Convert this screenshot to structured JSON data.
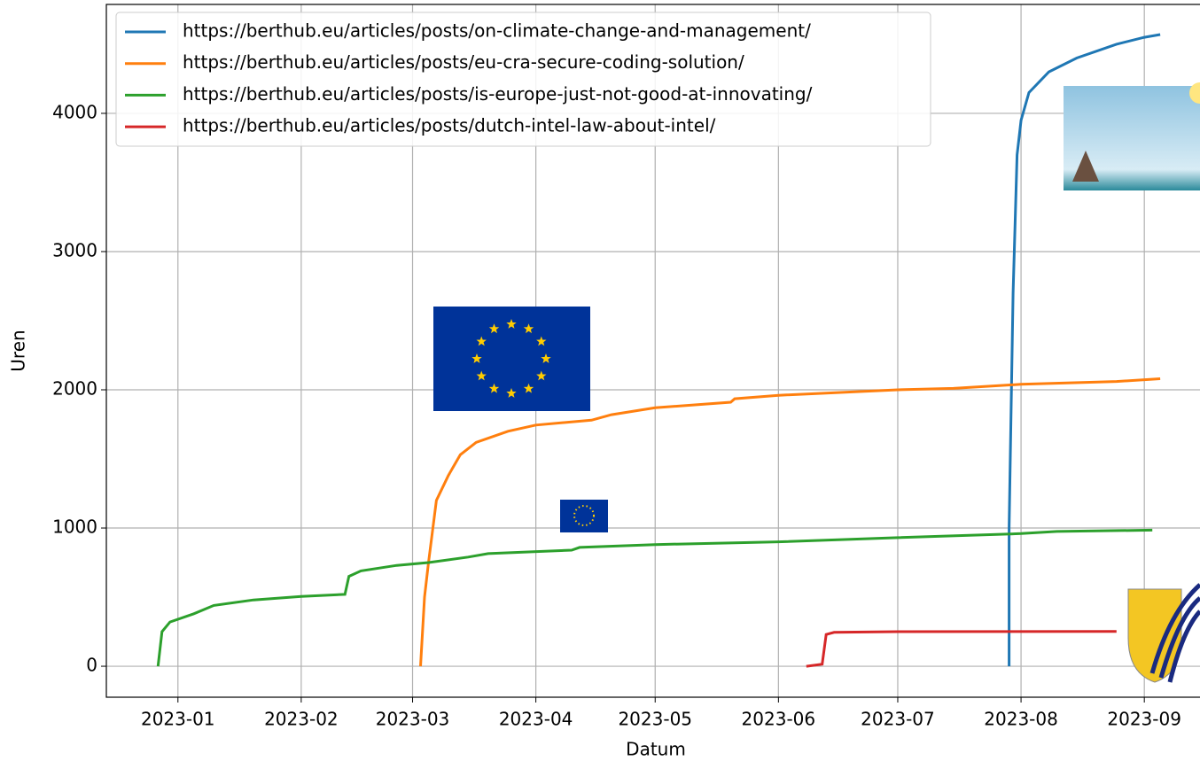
{
  "chart_data": {
    "type": "line",
    "xlabel": "Datum",
    "ylabel": "Uren",
    "xlim": [
      "2022-12-14",
      "2023-09-15"
    ],
    "ylim": [
      -224,
      4788
    ],
    "xticks": [
      {
        "value": "2023-01-01",
        "label": "2023-01"
      },
      {
        "value": "2023-02-01",
        "label": "2023-02"
      },
      {
        "value": "2023-03-01",
        "label": "2023-03"
      },
      {
        "value": "2023-04-01",
        "label": "2023-04"
      },
      {
        "value": "2023-05-01",
        "label": "2023-05"
      },
      {
        "value": "2023-06-01",
        "label": "2023-06"
      },
      {
        "value": "2023-07-01",
        "label": "2023-07"
      },
      {
        "value": "2023-08-01",
        "label": "2023-08"
      },
      {
        "value": "2023-09-01",
        "label": "2023-09"
      }
    ],
    "yticks": [
      0,
      1000,
      2000,
      3000,
      4000
    ],
    "grid": true,
    "legend": "upper left",
    "series": [
      {
        "name": "https://berthub.eu/articles/posts/on-climate-change-and-management/",
        "color": "#1f77b4",
        "x": [
          "2023-07-29",
          "2023-07-29",
          "2023-07-30",
          "2023-07-31",
          "2023-08-01",
          "2023-08-03",
          "2023-08-08",
          "2023-08-15",
          "2023-08-25",
          "2023-09-01",
          "2023-09-05"
        ],
        "values": [
          0,
          1000,
          2700,
          3700,
          3950,
          4150,
          4300,
          4400,
          4500,
          4550,
          4570
        ]
      },
      {
        "name": "https://berthub.eu/articles/posts/eu-cra-secure-coding-solution/",
        "color": "#ff7f0e",
        "x": [
          "2023-03-03",
          "2023-03-04",
          "2023-03-05",
          "2023-03-07",
          "2023-03-10",
          "2023-03-13",
          "2023-03-17",
          "2023-03-25",
          "2023-04-01",
          "2023-04-15",
          "2023-04-20",
          "2023-05-01",
          "2023-05-20",
          "2023-05-21",
          "2023-06-01",
          "2023-07-01",
          "2023-07-15",
          "2023-08-01",
          "2023-08-25",
          "2023-09-05"
        ],
        "values": [
          0,
          500,
          750,
          1200,
          1380,
          1530,
          1620,
          1700,
          1745,
          1780,
          1820,
          1870,
          1910,
          1935,
          1960,
          2000,
          2010,
          2040,
          2060,
          2080
        ]
      },
      {
        "name": "https://berthub.eu/articles/posts/is-europe-just-not-good-at-innovating/",
        "color": "#2ca02c",
        "x": [
          "2022-12-27",
          "2022-12-28",
          "2022-12-30",
          "2023-01-05",
          "2023-01-10",
          "2023-01-20",
          "2023-02-01",
          "2023-02-12",
          "2023-02-13",
          "2023-02-16",
          "2023-02-25",
          "2023-03-05",
          "2023-03-15",
          "2023-03-20",
          "2023-04-10",
          "2023-04-12",
          "2023-05-01",
          "2023-06-01",
          "2023-07-01",
          "2023-08-01",
          "2023-08-10",
          "2023-09-03"
        ],
        "values": [
          0,
          250,
          320,
          380,
          440,
          480,
          505,
          520,
          650,
          690,
          730,
          750,
          790,
          815,
          840,
          860,
          880,
          900,
          930,
          960,
          975,
          985
        ]
      },
      {
        "name": "https://berthub.eu/articles/posts/dutch-intel-law-about-intel/",
        "color": "#d62728",
        "x": [
          "2023-06-08",
          "2023-06-12",
          "2023-06-13",
          "2023-06-15",
          "2023-07-01",
          "2023-08-25"
        ],
        "values": [
          0,
          15,
          230,
          245,
          250,
          252
        ]
      }
    ]
  }
}
